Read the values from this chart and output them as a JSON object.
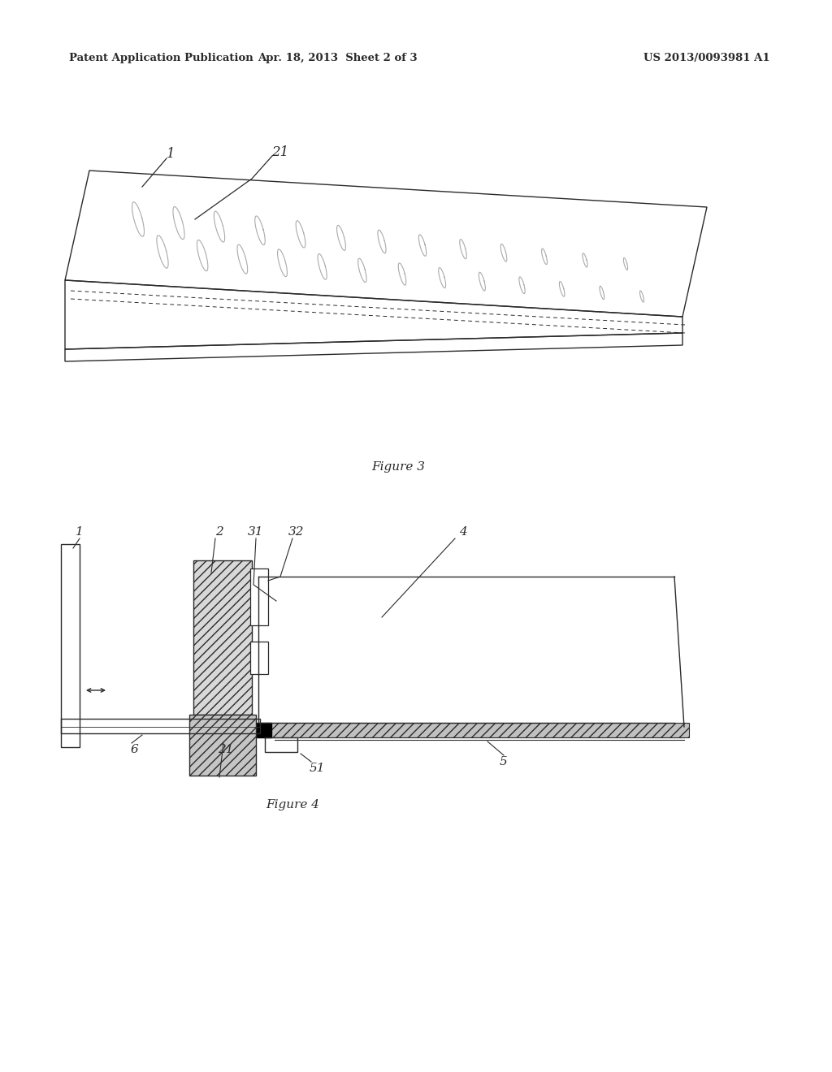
{
  "header_left": "Patent Application Publication",
  "header_center": "Apr. 18, 2013  Sheet 2 of 3",
  "header_right": "US 2013/0093981 A1",
  "fig3_caption": "Figure 3",
  "fig4_caption": "Figure 4",
  "bg_color": "#ffffff",
  "line_color": "#2a2a2a"
}
